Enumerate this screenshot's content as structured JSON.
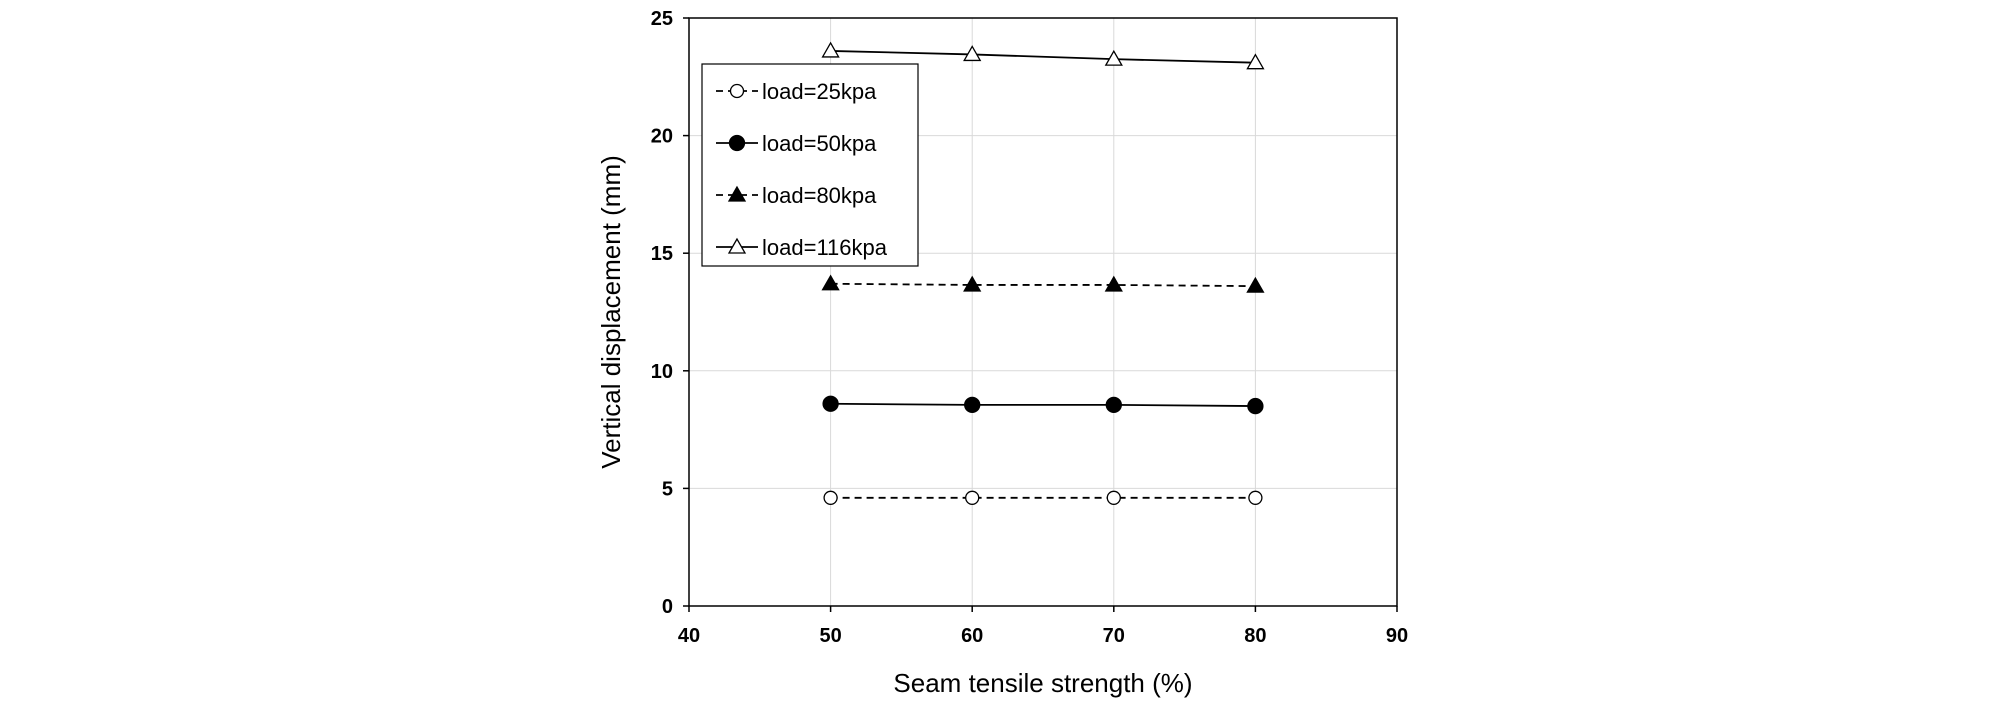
{
  "chart_data": {
    "type": "line",
    "xlabel": "Seam tensile strength (%)",
    "ylabel": "Vertical displacement (mm)",
    "xlim": [
      40,
      90
    ],
    "ylim": [
      0,
      25
    ],
    "xticks": [
      40,
      50,
      60,
      70,
      80,
      90
    ],
    "yticks": [
      0,
      5,
      10,
      15,
      20,
      25
    ],
    "grid": true,
    "legend_position": "top-left",
    "x": [
      50,
      60,
      70,
      80
    ],
    "series": [
      {
        "name": "load=25kpa",
        "values": [
          4.6,
          4.6,
          4.6,
          4.6
        ],
        "marker": "open-circle",
        "line": "dashed",
        "color": "#000000"
      },
      {
        "name": "load=50kpa",
        "values": [
          8.6,
          8.55,
          8.55,
          8.5
        ],
        "marker": "filled-circle",
        "line": "solid",
        "color": "#000000"
      },
      {
        "name": "load=80kpa",
        "values": [
          13.7,
          13.65,
          13.65,
          13.6
        ],
        "marker": "filled-triangle",
        "line": "dashed",
        "color": "#000000"
      },
      {
        "name": "load=116kpa",
        "values": [
          23.6,
          23.45,
          23.25,
          23.1
        ],
        "marker": "open-triangle",
        "line": "solid",
        "color": "#000000"
      }
    ]
  }
}
